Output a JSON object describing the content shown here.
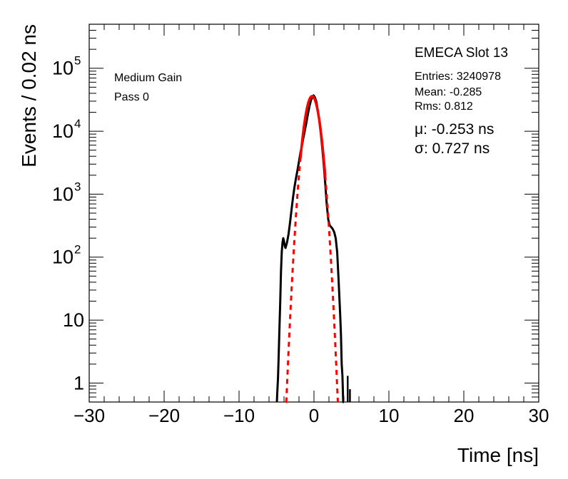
{
  "chart_data": {
    "type": "line",
    "title": "",
    "xlabel": "Time [ns]",
    "ylabel": "Events / 0.02 ns",
    "xlim": [
      -30,
      30
    ],
    "ylim": [
      0.5,
      500000
    ],
    "yscale": "log",
    "grid": false,
    "x_ticks": [
      -30,
      -20,
      -10,
      0,
      10,
      20,
      30
    ],
    "x_tick_labels": [
      "−30",
      "−20",
      "−10",
      "0",
      "10",
      "20",
      "30"
    ],
    "y_ticks": [
      1,
      10,
      100,
      1000,
      10000,
      100000
    ],
    "y_tick_labels": [
      {
        "base": "1",
        "exp": ""
      },
      {
        "base": "10",
        "exp": ""
      },
      {
        "base": "10",
        "exp": "2"
      },
      {
        "base": "10",
        "exp": "3"
      },
      {
        "base": "10",
        "exp": "4"
      },
      {
        "base": "10",
        "exp": "5"
      }
    ],
    "histogram": {
      "color": "#000000",
      "points": [
        [
          -4.95,
          0.5
        ],
        [
          -4.9,
          0.7
        ],
        [
          -4.8,
          1.2
        ],
        [
          -4.7,
          3
        ],
        [
          -4.6,
          8
        ],
        [
          -4.5,
          20
        ],
        [
          -4.4,
          60
        ],
        [
          -4.3,
          120
        ],
        [
          -4.2,
          170
        ],
        [
          -4.1,
          200
        ],
        [
          -4.0,
          180
        ],
        [
          -3.9,
          150
        ],
        [
          -3.8,
          140
        ],
        [
          -3.6,
          170
        ],
        [
          -3.4,
          230
        ],
        [
          -3.2,
          350
        ],
        [
          -3.0,
          560
        ],
        [
          -2.8,
          880
        ],
        [
          -2.6,
          1300
        ],
        [
          -2.4,
          1800
        ],
        [
          -2.2,
          2400
        ],
        [
          -2.0,
          3300
        ],
        [
          -1.8,
          4600
        ],
        [
          -1.6,
          6000
        ],
        [
          -1.4,
          8000
        ],
        [
          -1.2,
          10500
        ],
        [
          -1.0,
          14000
        ],
        [
          -0.8,
          19000
        ],
        [
          -0.6,
          25000
        ],
        [
          -0.4,
          31000
        ],
        [
          -0.2,
          35000
        ],
        [
          -0.05,
          37000
        ],
        [
          0.1,
          35000
        ],
        [
          0.3,
          30000
        ],
        [
          0.5,
          22000
        ],
        [
          0.7,
          15000
        ],
        [
          0.9,
          9500
        ],
        [
          1.1,
          5500
        ],
        [
          1.3,
          3000
        ],
        [
          1.5,
          1500
        ],
        [
          1.7,
          700
        ],
        [
          1.9,
          400
        ],
        [
          2.1,
          320
        ],
        [
          2.3,
          300
        ],
        [
          2.5,
          280
        ],
        [
          2.7,
          250
        ],
        [
          2.9,
          200
        ],
        [
          3.1,
          120
        ],
        [
          3.3,
          40
        ],
        [
          3.5,
          12
        ],
        [
          3.6,
          6
        ],
        [
          3.7,
          2
        ],
        [
          3.8,
          1.3
        ],
        [
          3.9,
          0.5
        ],
        [
          4.0,
          0.5
        ]
      ],
      "spikes": [
        [
          4.5,
          0.5,
          1.3
        ],
        [
          4.8,
          0.5,
          0.8
        ]
      ]
    },
    "fit": {
      "type": "gaussian",
      "color": "#ff0000",
      "mu": -0.253,
      "sigma": 0.727,
      "amplitude": 36000,
      "core_range": [
        -1.8,
        1.5
      ],
      "tail_range": [
        -3.75,
        3.2
      ]
    },
    "title_right": "EMECA Slot 13",
    "labels_left": [
      "Medium Gain",
      "Pass 0"
    ],
    "stats": [
      "Entries: 3240978",
      "Mean: -0.285",
      "Rms: 0.812"
    ],
    "fit_text": [
      "μ: -0.253 ns",
      "σ: 0.727 ns"
    ]
  }
}
